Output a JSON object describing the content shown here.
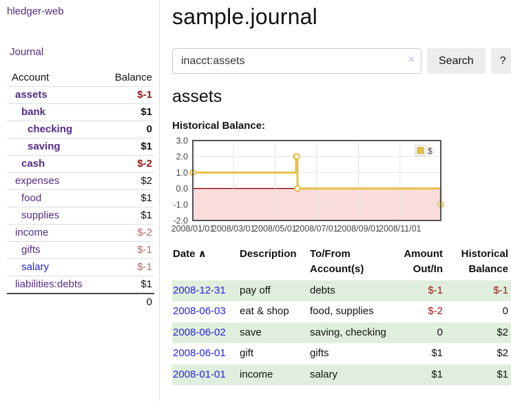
{
  "sidebar": {
    "app_title": "hledger-web",
    "nav_journal": "Journal",
    "accounts_table": {
      "col_account": "Account",
      "col_balance": "Balance",
      "rows": [
        {
          "name": "assets",
          "depth": 1,
          "bold": true,
          "name_color": "purple",
          "balance": "$-1",
          "balance_color": "red"
        },
        {
          "name": "bank",
          "depth": 2,
          "bold": true,
          "name_color": "purple",
          "balance": "$1",
          "balance_color": "black"
        },
        {
          "name": "checking",
          "depth": 3,
          "bold": true,
          "name_color": "purple",
          "balance": "0",
          "balance_color": "black"
        },
        {
          "name": "saving",
          "depth": 3,
          "bold": true,
          "name_color": "purple",
          "balance": "$1",
          "balance_color": "black"
        },
        {
          "name": "cash",
          "depth": 2,
          "bold": true,
          "name_color": "purple",
          "balance": "$-2",
          "balance_color": "red"
        },
        {
          "name": "expenses",
          "depth": 1,
          "bold": false,
          "name_color": "purple",
          "balance": "$2",
          "balance_color": "black"
        },
        {
          "name": "food",
          "depth": 2,
          "bold": false,
          "name_color": "purple",
          "balance": "$1",
          "balance_color": "black"
        },
        {
          "name": "supplies",
          "depth": 2,
          "bold": false,
          "name_color": "purple",
          "balance": "$1",
          "balance_color": "black"
        },
        {
          "name": "income",
          "depth": 1,
          "bold": false,
          "name_color": "purple",
          "balance": "$-2",
          "balance_color": "rose"
        },
        {
          "name": "gifts",
          "depth": 2,
          "bold": false,
          "name_color": "purple",
          "balance": "$-1",
          "balance_color": "rose"
        },
        {
          "name": "salary",
          "depth": 2,
          "bold": false,
          "name_color": "blue",
          "balance": "$-1",
          "balance_color": "rose"
        },
        {
          "name": "liabilities:debts",
          "depth": 1,
          "bold": false,
          "name_color": "purple",
          "balance": "$1",
          "balance_color": "black"
        }
      ],
      "total": "0"
    }
  },
  "main": {
    "title": "sample.journal",
    "search": {
      "value": "inacct:assets",
      "clear_icon": "×",
      "button_label": "Search",
      "help_label": "?"
    },
    "account_heading": "assets",
    "chart_label": "Historical Balance:",
    "register_table": {
      "sort_icon": "∧",
      "headers": [
        {
          "label": "Date",
          "align": "left",
          "sorted": true
        },
        {
          "label": "Description",
          "align": "left"
        },
        {
          "label": "To/From Account(s)",
          "align": "left"
        },
        {
          "label": "Amount Out/In",
          "align": "right"
        },
        {
          "label": "Historical Balance",
          "align": "right"
        }
      ],
      "rows": [
        {
          "date": "2008-12-31",
          "description": "pay off",
          "accounts": "debts",
          "amount": "$-1",
          "amount_neg": true,
          "balance": "$-1",
          "balance_neg": true
        },
        {
          "date": "2008-06-03",
          "description": "eat & shop",
          "accounts": "food, supplies",
          "amount": "$-2",
          "amount_neg": true,
          "balance": "0",
          "balance_neg": false
        },
        {
          "date": "2008-06-02",
          "description": "save",
          "accounts": "saving, checking",
          "amount": "0",
          "amount_neg": false,
          "balance": "$2",
          "balance_neg": false
        },
        {
          "date": "2008-06-01",
          "description": "gift",
          "accounts": "gifts",
          "amount": "$1",
          "amount_neg": false,
          "balance": "$2",
          "balance_neg": false
        },
        {
          "date": "2008-01-01",
          "description": "income",
          "accounts": "salary",
          "amount": "$1",
          "amount_neg": false,
          "balance": "$1",
          "balance_neg": false
        }
      ]
    }
  },
  "chart_data": {
    "type": "line",
    "step": true,
    "title": "Historical Balance",
    "series": [
      {
        "name": "$",
        "color": "#e8c04a",
        "points": [
          [
            "2008-01-01",
            1
          ],
          [
            "2008-06-01",
            2
          ],
          [
            "2008-06-02",
            2
          ],
          [
            "2008-06-03",
            0
          ],
          [
            "2008-12-31",
            -1
          ]
        ]
      }
    ],
    "xlim": [
      "2008-01-01",
      "2008-12-31"
    ],
    "ylim": [
      -2,
      3
    ],
    "y_ticks": [
      3.0,
      2.0,
      1.0,
      0.0,
      -1.0,
      -2.0
    ],
    "x_ticks": [
      {
        "label": "2008/01/01",
        "date": "2008-01-01"
      },
      {
        "label": "2008/03/01",
        "date": "2008-03-01"
      },
      {
        "label": "2008/05/01",
        "date": "2008-05-01"
      },
      {
        "label": "2008/07/01",
        "date": "2008-07-01"
      },
      {
        "label": "2008/09/01",
        "date": "2008-09-01"
      },
      {
        "label": "2008/11/01",
        "date": "2008-11-01"
      }
    ],
    "grid": true,
    "negative_fill": "#fbdcdc",
    "zero_line_color": "#8b0000",
    "grid_color": "#e4e4e4",
    "border_color": "#545454",
    "legend": {
      "label": "$",
      "position": "top-right"
    }
  }
}
